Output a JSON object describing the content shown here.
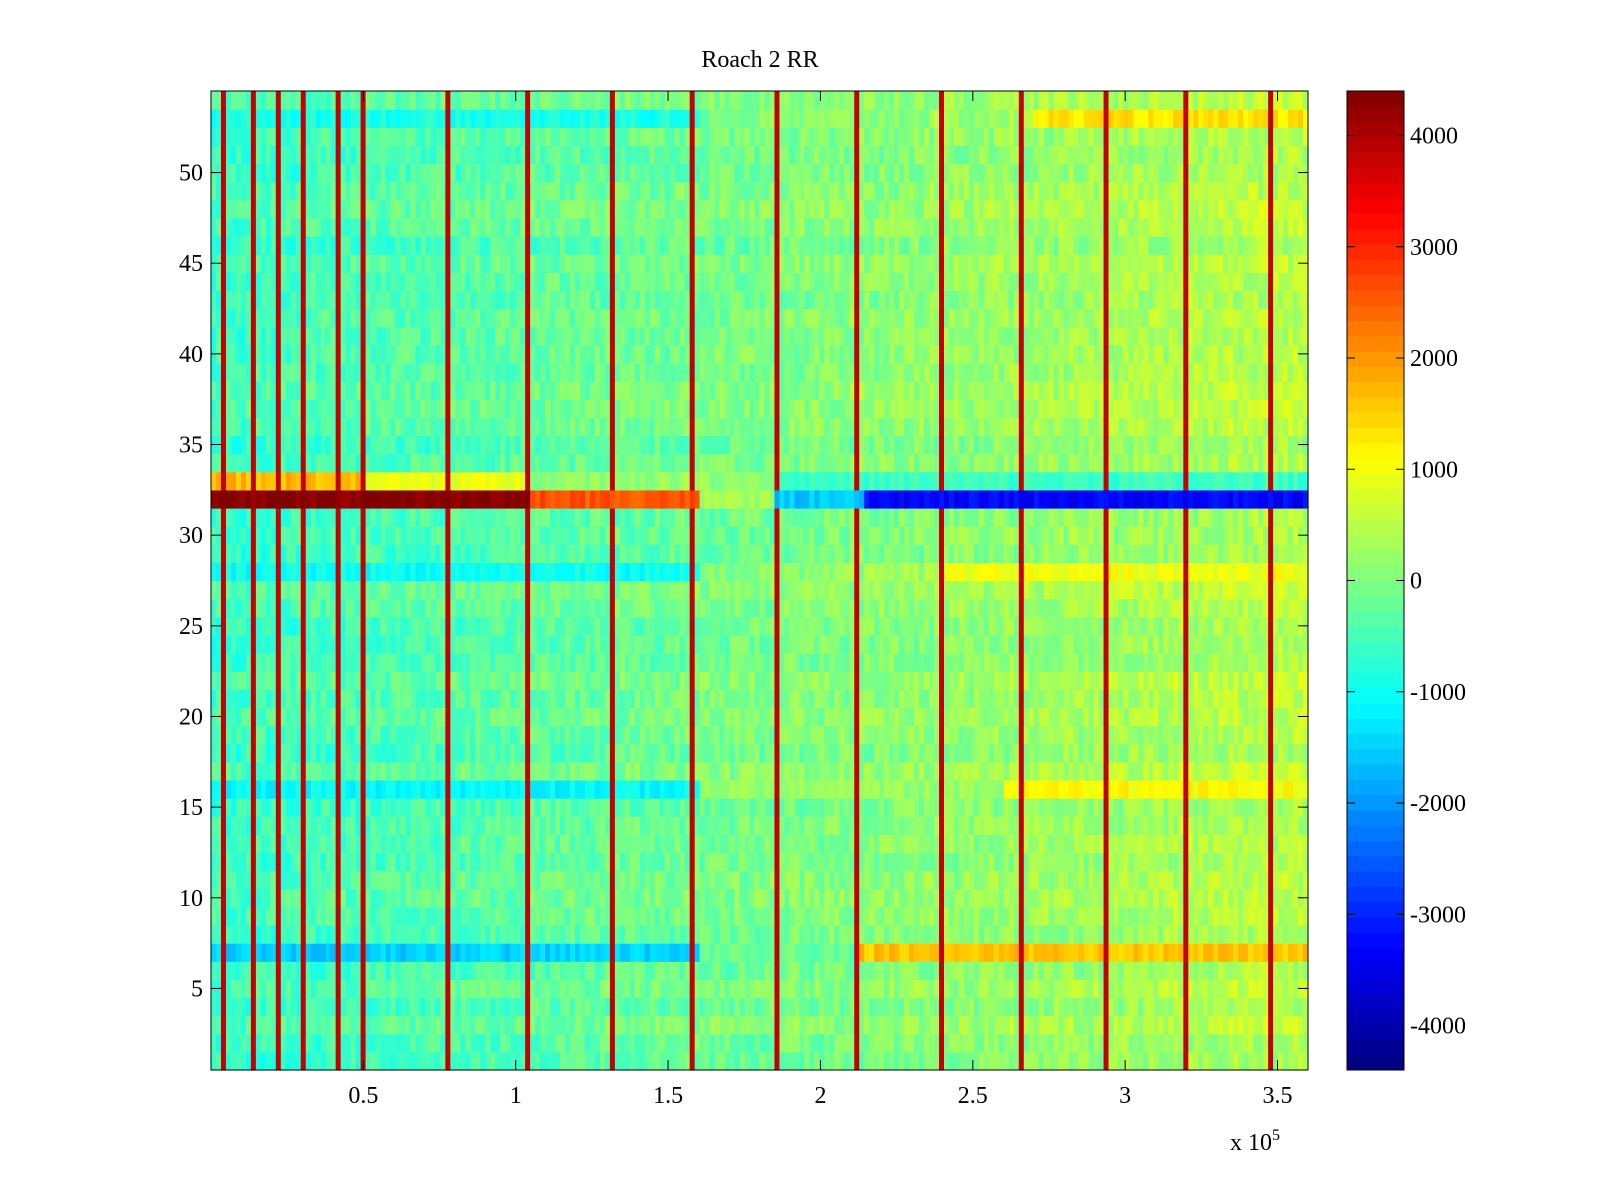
{
  "chart_data": {
    "type": "heatmap",
    "title": "Roach 2 RR",
    "xlabel": "",
    "ylabel": "",
    "x_range": [
      0,
      360000
    ],
    "y_range": [
      0.5,
      54.5
    ],
    "x_multiplier_label": "x 10",
    "x_multiplier_exponent": "5",
    "x_ticks": [
      {
        "value": 50000,
        "label": "0.5"
      },
      {
        "value": 100000,
        "label": "1"
      },
      {
        "value": 150000,
        "label": "1.5"
      },
      {
        "value": 200000,
        "label": "2"
      },
      {
        "value": 250000,
        "label": "2.5"
      },
      {
        "value": 300000,
        "label": "3"
      },
      {
        "value": 350000,
        "label": "3.5"
      }
    ],
    "y_ticks": [
      {
        "value": 5,
        "label": "5"
      },
      {
        "value": 10,
        "label": "10"
      },
      {
        "value": 15,
        "label": "15"
      },
      {
        "value": 20,
        "label": "20"
      },
      {
        "value": 25,
        "label": "25"
      },
      {
        "value": 30,
        "label": "30"
      },
      {
        "value": 35,
        "label": "35"
      },
      {
        "value": 40,
        "label": "40"
      },
      {
        "value": 45,
        "label": "45"
      },
      {
        "value": 50,
        "label": "50"
      }
    ],
    "colorbar": {
      "colormap": "jet",
      "range": [
        -4400,
        4400
      ],
      "ticks": [
        {
          "value": 4000,
          "label": "4000"
        },
        {
          "value": 3000,
          "label": "3000"
        },
        {
          "value": 2000,
          "label": "2000"
        },
        {
          "value": 1000,
          "label": "1000"
        },
        {
          "value": 0,
          "label": "0"
        },
        {
          "value": -1000,
          "label": "-1000"
        },
        {
          "value": -2000,
          "label": "-2000"
        },
        {
          "value": -3000,
          "label": "-3000"
        },
        {
          "value": -4000,
          "label": "-4000"
        }
      ]
    },
    "description_of_field": {
      "baseline_left": -600,
      "baseline_right": 500,
      "noise_amplitude": 350,
      "vertical_spike_x_positions": [
        4000,
        14000,
        22000,
        31000,
        41000,
        50000,
        77000,
        104000,
        131000,
        158000,
        185000,
        212000,
        239000,
        266000,
        293000,
        320000,
        347000
      ],
      "vertical_spike_value": 3800,
      "anomalous_rows": [
        {
          "row": 32,
          "segments": [
            {
              "x_start": 0,
              "x_end": 105000,
              "value": 4400
            },
            {
              "x_start": 105000,
              "x_end": 160000,
              "value": 2600
            },
            {
              "x_start": 160000,
              "x_end": 185000,
              "value": 300
            },
            {
              "x_start": 185000,
              "x_end": 215000,
              "value": -1600
            },
            {
              "x_start": 215000,
              "x_end": 360000,
              "value": -3300
            }
          ]
        },
        {
          "row": 33,
          "segments": [
            {
              "x_start": 0,
              "x_end": 50000,
              "value": 1700
            },
            {
              "x_start": 50000,
              "x_end": 105000,
              "value": 900
            },
            {
              "x_start": 105000,
              "x_end": 185000,
              "value": 200
            },
            {
              "x_start": 185000,
              "x_end": 360000,
              "value": -600
            }
          ]
        },
        {
          "row": 7,
          "segments": [
            {
              "x_start": 0,
              "x_end": 160000,
              "value": -1500
            },
            {
              "x_start": 160000,
              "x_end": 212000,
              "value": -200
            },
            {
              "x_start": 212000,
              "x_end": 360000,
              "value": 1600
            }
          ]
        },
        {
          "row": 16,
          "segments": [
            {
              "x_start": 0,
              "x_end": 160000,
              "value": -1100
            },
            {
              "x_start": 160000,
              "x_end": 260000,
              "value": 200
            },
            {
              "x_start": 260000,
              "x_end": 360000,
              "value": 1100
            }
          ]
        },
        {
          "row": 28,
          "segments": [
            {
              "x_start": 0,
              "x_end": 160000,
              "value": -1000
            },
            {
              "x_start": 240000,
              "x_end": 360000,
              "value": 1000
            }
          ]
        },
        {
          "row": 53,
          "segments": [
            {
              "x_start": 0,
              "x_end": 160000,
              "value": -900
            },
            {
              "x_start": 270000,
              "x_end": 360000,
              "value": 1300
            }
          ]
        }
      ]
    }
  }
}
